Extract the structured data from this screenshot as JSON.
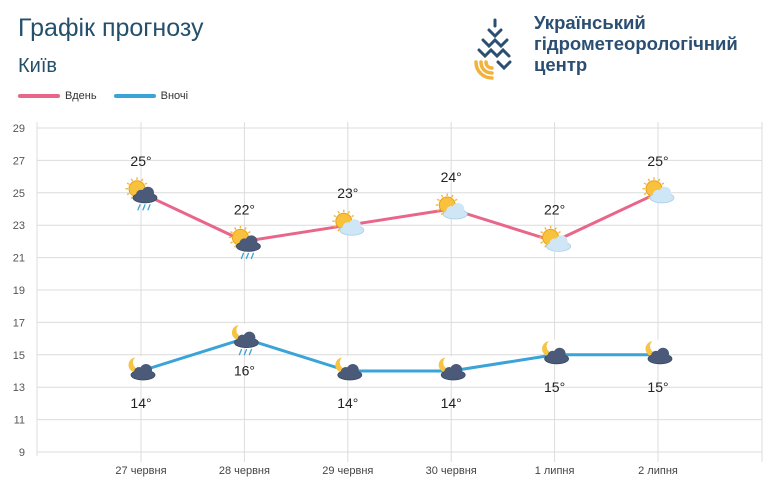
{
  "header": {
    "title": "Графік прогнозу",
    "city": "Київ",
    "org_line1": "Український",
    "org_line2": "гідрометеорологічний",
    "org_line3": "центр"
  },
  "colors": {
    "day": "#e8668a",
    "night": "#3aa3d8",
    "title": "#24506b",
    "grid": "#dcdcdc"
  },
  "legend": [
    {
      "label": "Вдень",
      "color": "#e8668a"
    },
    {
      "label": "Вночі",
      "color": "#3aa3d8"
    }
  ],
  "chart_data": {
    "type": "line",
    "categories": [
      "27 червня",
      "28 червня",
      "29 червня",
      "30 червня",
      "1 липня",
      "2 липня"
    ],
    "ylim": [
      9,
      29
    ],
    "yticks": [
      9,
      11,
      13,
      15,
      17,
      19,
      21,
      23,
      25,
      27,
      29
    ],
    "grid": true,
    "series": [
      {
        "name": "Вдень",
        "values": [
          25,
          22,
          23,
          24,
          22,
          25
        ],
        "labels": [
          "25°",
          "22°",
          "23°",
          "24°",
          "22°",
          "25°"
        ],
        "icons": [
          "sun-cloud-rain-icon",
          "sun-cloud-rain-icon",
          "sun-cloud-icon",
          "sun-cloud-icon",
          "sun-cloud-icon",
          "sun-cloud-icon"
        ]
      },
      {
        "name": "Вночі",
        "values": [
          14,
          16,
          14,
          14,
          15,
          15
        ],
        "labels": [
          "14°",
          "16°",
          "14°",
          "14°",
          "15°",
          "15°"
        ],
        "icons": [
          "moon-cloud-icon",
          "moon-cloud-rain-icon",
          "moon-cloud-icon",
          "moon-cloud-icon",
          "moon-cloud-icon",
          "moon-cloud-icon"
        ]
      }
    ]
  }
}
